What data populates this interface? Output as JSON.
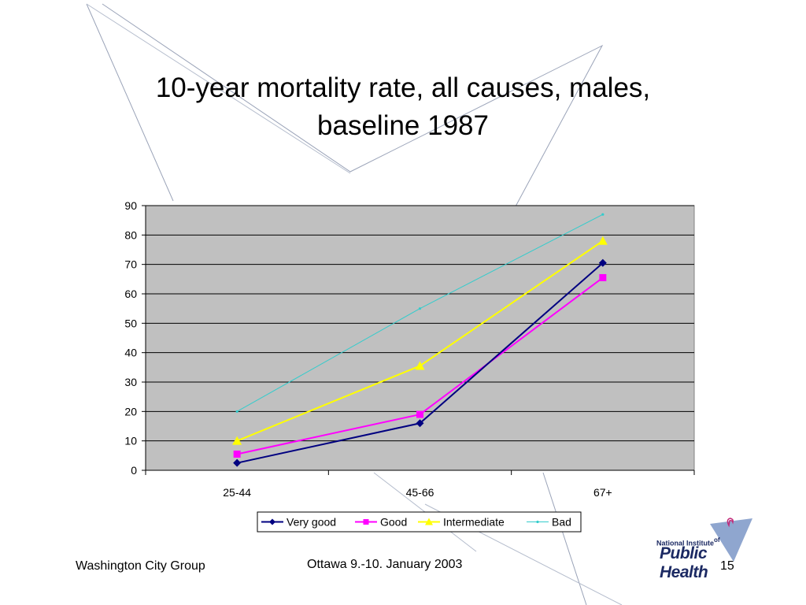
{
  "slide": {
    "title_line1": "10-year mortality rate, all causes, males,",
    "title_line2": "baseline 1987",
    "footer_left": "Washington City Group",
    "footer_center": "Ottawa 9.-10. January 2003",
    "page_number": "15",
    "logo_line1": "National Institute",
    "logo_of": "of",
    "logo_line2": "Public Health"
  },
  "chart_data": {
    "type": "line",
    "categories": [
      "25-44",
      "45-66",
      "67+"
    ],
    "ylim": [
      0,
      90
    ],
    "yticks": [
      0,
      10,
      20,
      30,
      40,
      50,
      60,
      70,
      80,
      90
    ],
    "grid": true,
    "legend_position": "bottom",
    "plot_background": "#c0c0c0",
    "series": [
      {
        "name": "Very good",
        "values": [
          2.5,
          16,
          70.5
        ],
        "color": "#000080",
        "marker": "diamond"
      },
      {
        "name": "Good",
        "values": [
          5.5,
          19,
          65.5
        ],
        "color": "#ff00ff",
        "marker": "square"
      },
      {
        "name": "Intermediate",
        "values": [
          10,
          35.5,
          78
        ],
        "color": "#ffff00",
        "marker": "triangle"
      },
      {
        "name": "Bad",
        "values": [
          20,
          55,
          87
        ],
        "color": "#33cccc",
        "marker": "star"
      }
    ]
  }
}
